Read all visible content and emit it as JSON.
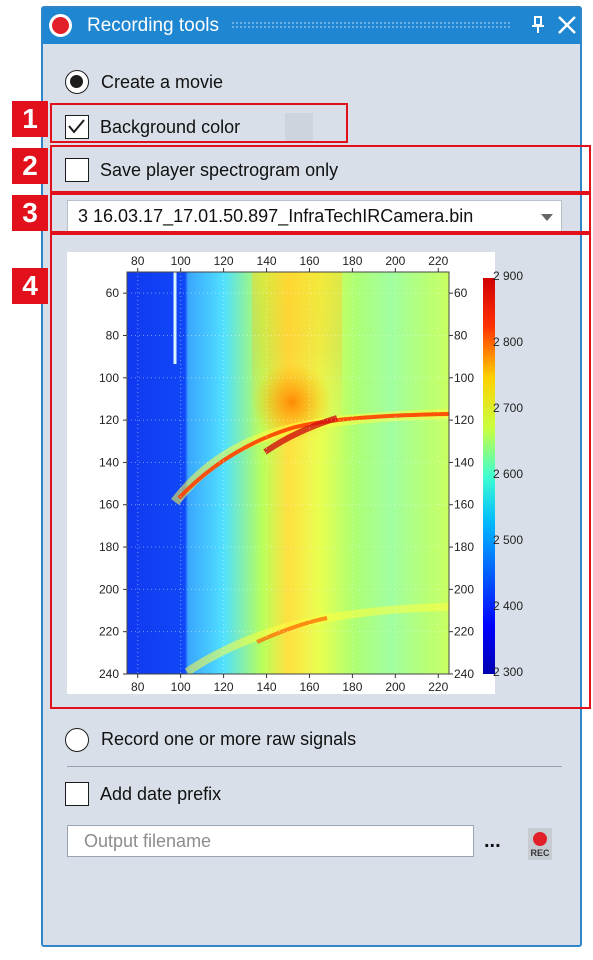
{
  "window": {
    "title": "Recording tools",
    "pin_glyph": "⊕"
  },
  "options": {
    "create_movie_label": "Create a movie",
    "background_color_label": "Background color",
    "save_spectrogram_label": "Save player spectrogram only",
    "selected_file": "3 16.03.17_17.01.50.897_InfraTechIRCamera.bin",
    "record_raw_label": "Record one or more raw signals",
    "add_date_prefix_label": "Add date prefix",
    "output_filename_placeholder": "Output filename",
    "browse_label": "...",
    "rec_label": "REC"
  },
  "state": {
    "create_movie_selected": true,
    "background_color_checked": true,
    "save_spectrogram_checked": false,
    "record_raw_selected": false,
    "add_date_prefix_checked": false
  },
  "callouts": [
    "1",
    "2",
    "3",
    "4"
  ],
  "chart_data": {
    "type": "heatmap",
    "x_ticks": [
      "80",
      "100",
      "120",
      "140",
      "160",
      "180",
      "200",
      "220"
    ],
    "y_ticks": [
      "60",
      "80",
      "100",
      "120",
      "140",
      "160",
      "180",
      "200",
      "220",
      "240"
    ],
    "xlim": [
      75,
      225
    ],
    "ylim": [
      50,
      240
    ],
    "colorbar_ticks": [
      "2 900",
      "2 800",
      "2 700",
      "2 600",
      "2 500",
      "2 400",
      "2 300"
    ],
    "colorbar_range": [
      2300,
      2900
    ],
    "colormap": "jet"
  },
  "colors": {
    "accent": "#1f86d1",
    "panel": "#d9dfe8",
    "callout": "#e2101a",
    "record": "#e2202a"
  }
}
